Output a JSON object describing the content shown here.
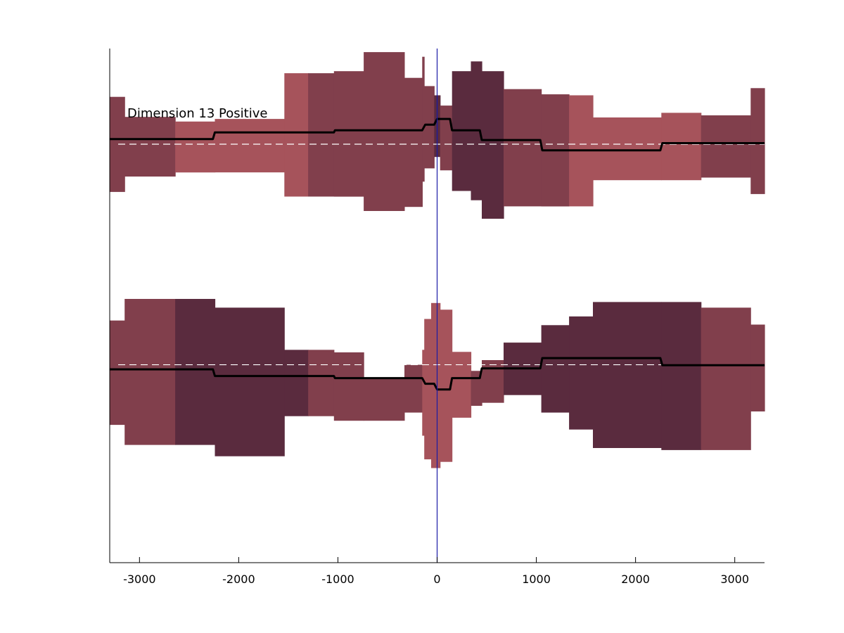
{
  "chart_data": {
    "type": "area",
    "annotation": "Dimension 13 Positive",
    "xlim": [
      -3300,
      3300
    ],
    "xticks": [
      -3000,
      -2000,
      -1000,
      0,
      1000,
      2000,
      3000
    ],
    "xtick_labels": [
      "-3000",
      "-2000",
      "-1000",
      "0",
      "1000",
      "2000",
      "3000"
    ],
    "ylim": [
      0,
      100
    ],
    "grid": false,
    "colors": {
      "light": "#a6535b",
      "medium": "#813f4c",
      "dark": "#5a2b3e",
      "marker_line": "#1a1aa6",
      "median_line": "#000000",
      "baseline": "#ffffff"
    },
    "zero_marker_x": 0,
    "series": [
      {
        "baseline": 81.4,
        "bands": [
          {
            "x0": -3300,
            "x1": -3150,
            "low": 72.1,
            "high": 90.6,
            "shade": "medium"
          },
          {
            "x0": -3150,
            "x1": -2640,
            "low": 75.1,
            "high": 86.7,
            "shade": "medium"
          },
          {
            "x0": -2640,
            "x1": -2240,
            "low": 75.9,
            "high": 85.8,
            "shade": "light"
          },
          {
            "x0": -2240,
            "x1": -1540,
            "low": 75.9,
            "high": 86.3,
            "shade": "light"
          },
          {
            "x0": -1540,
            "x1": -1300,
            "low": 71.2,
            "high": 95.2,
            "shade": "light"
          },
          {
            "x0": -1300,
            "x1": -1040,
            "low": 71.2,
            "high": 95.2,
            "shade": "medium"
          },
          {
            "x0": -1040,
            "x1": -740,
            "low": 71.2,
            "high": 95.6,
            "shade": "medium"
          },
          {
            "x0": -740,
            "x1": -330,
            "low": 68.4,
            "high": 99.3,
            "shade": "medium"
          },
          {
            "x0": -330,
            "x1": -150,
            "low": 69.2,
            "high": 94.3,
            "shade": "medium"
          },
          {
            "x0": -150,
            "x1": -130,
            "low": 74.1,
            "high": 98.4,
            "shade": "medium"
          },
          {
            "x0": -130,
            "x1": -30,
            "low": 76.7,
            "high": 92.7,
            "shade": "medium"
          },
          {
            "x0": -30,
            "x1": 30,
            "low": 78.9,
            "high": 90.9,
            "shade": "dark"
          },
          {
            "x0": 30,
            "x1": 150,
            "low": 76.3,
            "high": 88.9,
            "shade": "medium"
          },
          {
            "x0": 150,
            "x1": 340,
            "low": 72.3,
            "high": 95.6,
            "shade": "dark"
          },
          {
            "x0": 340,
            "x1": 450,
            "low": 70.5,
            "high": 97.5,
            "shade": "dark"
          },
          {
            "x0": 450,
            "x1": 670,
            "low": 66.9,
            "high": 95.6,
            "shade": "dark"
          },
          {
            "x0": 670,
            "x1": 1050,
            "low": 69.3,
            "high": 92.1,
            "shade": "medium"
          },
          {
            "x0": 1050,
            "x1": 1330,
            "low": 69.3,
            "high": 91.1,
            "shade": "medium"
          },
          {
            "x0": 1330,
            "x1": 1570,
            "low": 69.3,
            "high": 90.9,
            "shade": "light"
          },
          {
            "x0": 1570,
            "x1": 2260,
            "low": 74.4,
            "high": 86.6,
            "shade": "light"
          },
          {
            "x0": 2260,
            "x1": 2660,
            "low": 74.4,
            "high": 87.5,
            "shade": "light"
          },
          {
            "x0": 2660,
            "x1": 3160,
            "low": 74.9,
            "high": 87.0,
            "shade": "medium"
          },
          {
            "x0": 3160,
            "x1": 3300,
            "low": 71.7,
            "high": 92.3,
            "shade": "medium"
          }
        ],
        "median": {
          "x": [
            -3300,
            -2260,
            -2240,
            -1040,
            -1030,
            -150,
            -120,
            -30,
            0,
            130,
            150,
            430,
            450,
            1040,
            1060,
            2250,
            2270,
            3300
          ],
          "y": [
            82.4,
            82.4,
            83.7,
            83.7,
            84.1,
            84.1,
            85.2,
            85.2,
            86.3,
            86.3,
            84.1,
            84.1,
            82.2,
            82.2,
            80.2,
            80.2,
            81.6,
            81.6
          ]
        }
      },
      {
        "baseline": 38.5,
        "bands": [
          {
            "x0": -3300,
            "x1": -3150,
            "low": 26.8,
            "high": 47.1,
            "shade": "medium"
          },
          {
            "x0": -3150,
            "x1": -2640,
            "low": 22.9,
            "high": 51.3,
            "shade": "medium"
          },
          {
            "x0": -2640,
            "x1": -2240,
            "low": 22.9,
            "high": 51.3,
            "shade": "dark"
          },
          {
            "x0": -2240,
            "x1": -1540,
            "low": 20.7,
            "high": 49.6,
            "shade": "dark"
          },
          {
            "x0": -1540,
            "x1": -1300,
            "low": 28.5,
            "high": 41.4,
            "shade": "dark"
          },
          {
            "x0": -1300,
            "x1": -1040,
            "low": 28.5,
            "high": 41.4,
            "shade": "medium"
          },
          {
            "x0": -1040,
            "x1": -740,
            "low": 27.6,
            "high": 40.9,
            "shade": "medium"
          },
          {
            "x0": -740,
            "x1": -330,
            "low": 27.6,
            "high": 35.8,
            "shade": "medium"
          },
          {
            "x0": -330,
            "x1": -150,
            "low": 29.2,
            "high": 38.5,
            "shade": "medium"
          },
          {
            "x0": -150,
            "x1": -130,
            "low": 24.7,
            "high": 41.4,
            "shade": "light"
          },
          {
            "x0": -130,
            "x1": -60,
            "low": 20.1,
            "high": 47.4,
            "shade": "light"
          },
          {
            "x0": -60,
            "x1": 30,
            "low": 18.4,
            "high": 50.5,
            "shade": "light"
          },
          {
            "x0": 30,
            "x1": 150,
            "low": 19.6,
            "high": 49.2,
            "shade": "light"
          },
          {
            "x0": 150,
            "x1": 340,
            "low": 28.2,
            "high": 41.0,
            "shade": "light"
          },
          {
            "x0": 340,
            "x1": 450,
            "low": 30.5,
            "high": 37.3,
            "shade": "medium"
          },
          {
            "x0": 450,
            "x1": 670,
            "low": 31.1,
            "high": 39.4,
            "shade": "medium"
          },
          {
            "x0": 670,
            "x1": 1050,
            "low": 32.6,
            "high": 42.8,
            "shade": "dark"
          },
          {
            "x0": 1050,
            "x1": 1330,
            "low": 29.2,
            "high": 46.2,
            "shade": "dark"
          },
          {
            "x0": 1330,
            "x1": 1570,
            "low": 25.9,
            "high": 47.9,
            "shade": "dark"
          },
          {
            "x0": 1570,
            "x1": 2260,
            "low": 22.3,
            "high": 50.7,
            "shade": "dark"
          },
          {
            "x0": 2260,
            "x1": 2660,
            "low": 21.9,
            "high": 50.7,
            "shade": "dark"
          },
          {
            "x0": 2660,
            "x1": 3160,
            "low": 21.9,
            "high": 49.6,
            "shade": "medium"
          },
          {
            "x0": 3160,
            "x1": 3300,
            "low": 29.4,
            "high": 46.3,
            "shade": "medium"
          }
        ],
        "median": {
          "x": [
            -3300,
            -2260,
            -2240,
            -1040,
            -1030,
            -150,
            -120,
            -30,
            0,
            130,
            150,
            430,
            450,
            1040,
            1060,
            2250,
            2270,
            3300
          ],
          "y": [
            37.6,
            37.6,
            36.3,
            36.3,
            35.9,
            35.9,
            34.8,
            34.8,
            33.7,
            33.7,
            35.9,
            35.9,
            37.8,
            37.8,
            39.8,
            39.8,
            38.4,
            38.4
          ]
        }
      }
    ]
  }
}
